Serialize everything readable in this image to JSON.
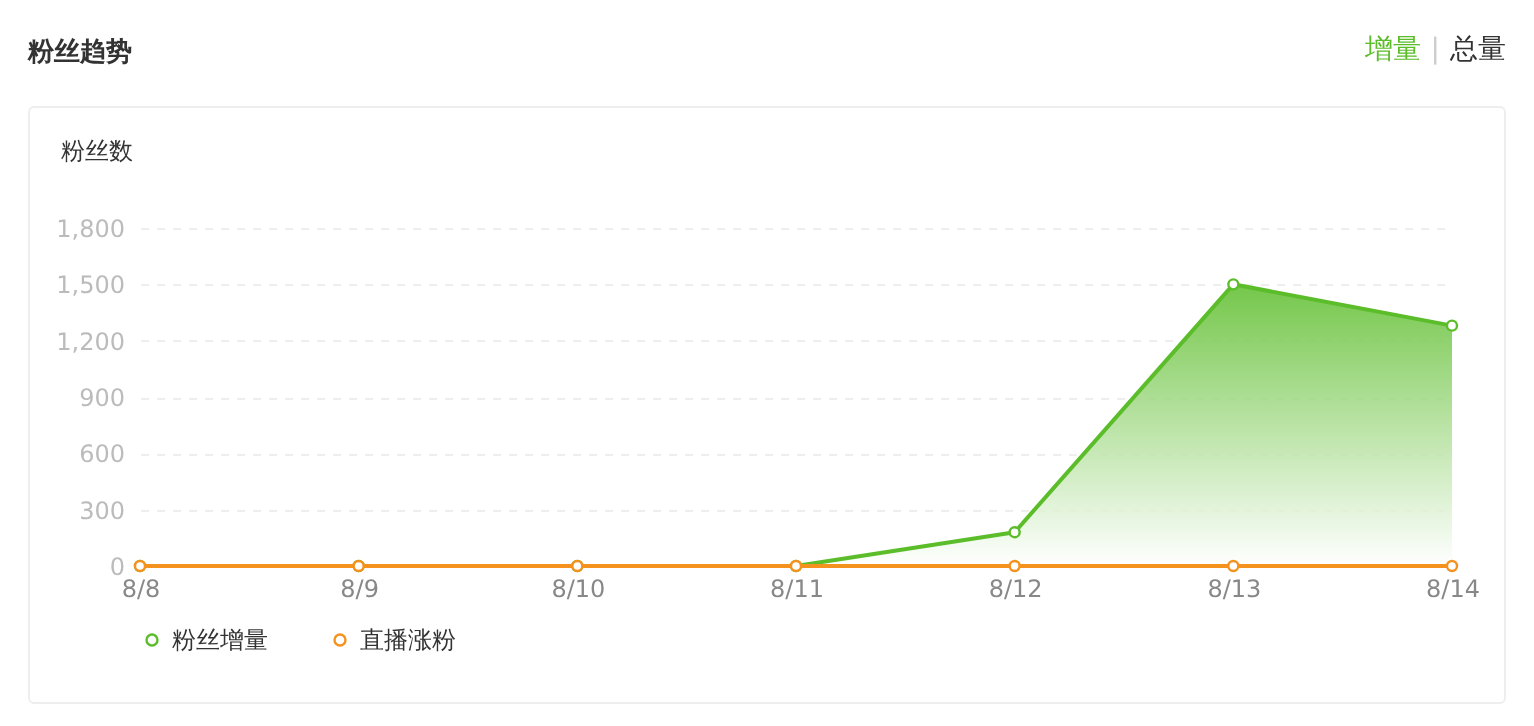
{
  "chart_data": {
    "type": "line",
    "title": "粉丝趋势",
    "ylabel": "粉丝数",
    "annotations": [
      "增量",
      "|",
      "总量"
    ],
    "categories": [
      "8/8",
      "8/9",
      "8/10",
      "8/11",
      "8/12",
      "8/13",
      "8/14"
    ],
    "series": [
      {
        "name": "粉丝增量",
        "type": "area",
        "color": "#5cbd2b",
        "values": [
          0,
          0,
          0,
          0,
          180,
          1500,
          1280
        ]
      },
      {
        "name": "直播涨粉",
        "type": "line",
        "color": "#f5921e",
        "values": [
          0,
          0,
          0,
          0,
          0,
          0,
          0
        ]
      }
    ],
    "ylim": [
      0,
      1800
    ],
    "yticks": [
      0,
      300,
      600,
      900,
      {
        "value": 1200,
        "label": "1,200"
      },
      {
        "value": 1500,
        "label": "1,500"
      },
      {
        "value": 1800,
        "label": "1,800"
      }
    ],
    "grid": "y",
    "legend": "bottom",
    "marker": "circle"
  }
}
